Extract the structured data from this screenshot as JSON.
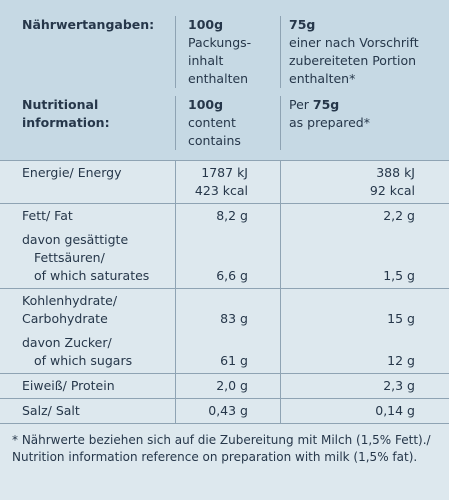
{
  "header": {
    "de": {
      "label": "Nährwertangaben:",
      "col1": {
        "amount": "100g",
        "lines": [
          "Packungs-",
          "inhalt",
          "enthalten"
        ]
      },
      "col2": {
        "amount": "75g",
        "lines": [
          "einer nach Vorschrift",
          "zubereiteten Portion",
          "enthalten*"
        ]
      }
    },
    "en": {
      "label": [
        "Nutritional",
        "information:"
      ],
      "col1": {
        "amount": "100g",
        "lines": [
          "content",
          "contains"
        ]
      },
      "col2": {
        "prefix": "Per",
        "amount": "75g",
        "lines": [
          "as prepared*"
        ]
      }
    }
  },
  "table": {
    "rows": [
      [
        {
          "labels": [
            "Energie/ Energy"
          ],
          "v1": [
            "1787 kJ",
            "423 kcal"
          ],
          "v2": [
            "388 kJ",
            "92 kcal"
          ]
        }
      ],
      [
        {
          "labels": [
            "Fett/ Fat"
          ],
          "v1": [
            "8,2 g"
          ],
          "v2": [
            "2,2 g"
          ]
        },
        {
          "labels": [
            "davon gesättigte",
            "Fettsäuren/",
            "of which saturates"
          ],
          "v1": [
            "6,6 g"
          ],
          "v2": [
            "1,5 g"
          ]
        }
      ],
      [
        {
          "labels": [
            "Kohlenhydrate/",
            "Carbohydrate"
          ],
          "v1": [
            "83 g"
          ],
          "v2": [
            "15 g"
          ]
        },
        {
          "labels": [
            "davon Zucker/",
            "of which sugars"
          ],
          "v1": [
            "61 g"
          ],
          "v2": [
            "12 g"
          ]
        }
      ],
      [
        {
          "labels": [
            "Eiweiß/ Protein"
          ],
          "v1": [
            "2,0 g"
          ],
          "v2": [
            "2,3 g"
          ]
        }
      ],
      [
        {
          "labels": [
            "Salz/ Salt"
          ],
          "v1": [
            "0,43 g"
          ],
          "v2": [
            "0,14 g"
          ]
        }
      ]
    ]
  },
  "footnote": "* Nährwerte beziehen sich auf die Zubereitung mit Milch (1,5% Fett)./ Nutrition information reference on preparation with milk (1,5% fat)."
}
